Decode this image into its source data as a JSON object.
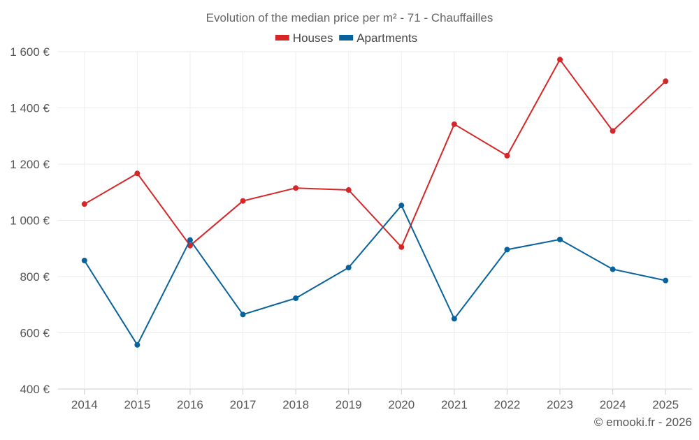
{
  "chart_data": {
    "type": "line",
    "title": "Evolution of the median price per m² - 71 - Chauffailles",
    "xlabel": "",
    "ylabel": "",
    "categories": [
      "2014",
      "2015",
      "2016",
      "2017",
      "2018",
      "2019",
      "2020",
      "2021",
      "2022",
      "2023",
      "2024",
      "2025"
    ],
    "ylim": [
      400,
      1600
    ],
    "yticks": [
      400,
      600,
      800,
      1000,
      1200,
      1400,
      1600
    ],
    "ytick_labels": [
      "400 €",
      "600 €",
      "800 €",
      "1 000 €",
      "1 200 €",
      "1 400 €",
      "1 600 €"
    ],
    "grid": true,
    "legend_position": "top-center",
    "series": [
      {
        "name": "Houses",
        "color": "#d62728",
        "values": [
          1058,
          1167,
          910,
          1069,
          1115,
          1108,
          905,
          1342,
          1230,
          1572,
          1318,
          1495
        ]
      },
      {
        "name": "Apartments",
        "color": "#08629b",
        "values": [
          857,
          557,
          930,
          665,
          723,
          832,
          1053,
          650,
          896,
          932,
          826,
          786
        ]
      }
    ],
    "credit": "© emooki.fr - 2026"
  }
}
